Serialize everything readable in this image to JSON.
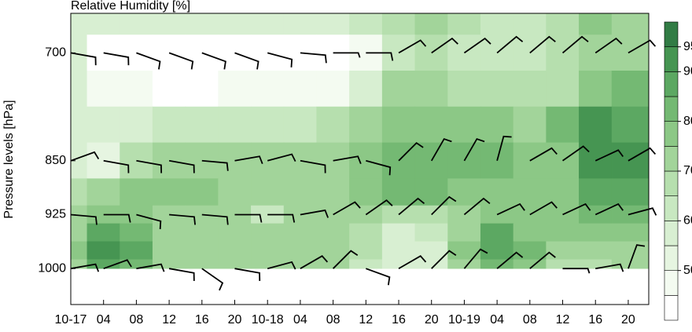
{
  "chart_data": {
    "type": "contour",
    "title": "Relative Humidity [%]",
    "ylabel": "Pressure levels [hPa]",
    "x": [
      0,
      4,
      8,
      12,
      16,
      20,
      24,
      28,
      32,
      36,
      40,
      44,
      48,
      52,
      56,
      60,
      64,
      68
    ],
    "xlim": [
      0,
      70.5
    ],
    "xticks": [
      {
        "value": 0,
        "label": "10-17"
      },
      {
        "value": 4,
        "label": "04"
      },
      {
        "value": 8,
        "label": "08"
      },
      {
        "value": 12,
        "label": "12"
      },
      {
        "value": 16,
        "label": "16"
      },
      {
        "value": 20,
        "label": "20"
      },
      {
        "value": 24,
        "label": "10-18"
      },
      {
        "value": 28,
        "label": "04"
      },
      {
        "value": 32,
        "label": "08"
      },
      {
        "value": 36,
        "label": "12"
      },
      {
        "value": 40,
        "label": "16"
      },
      {
        "value": 44,
        "label": "20"
      },
      {
        "value": 48,
        "label": "10-19"
      },
      {
        "value": 52,
        "label": "04"
      },
      {
        "value": 56,
        "label": "08"
      },
      {
        "value": 60,
        "label": "12"
      },
      {
        "value": 64,
        "label": "16"
      },
      {
        "value": 68,
        "label": "20"
      }
    ],
    "ylim": [
      1050,
      645
    ],
    "yticks": [
      700,
      850,
      925,
      1000
    ],
    "levels": [
      650,
      700,
      750,
      800,
      850,
      900,
      925,
      950,
      975,
      1000
    ],
    "values": [
      [
        58,
        58,
        57,
        57,
        56,
        56,
        55,
        55,
        55,
        60,
        68,
        70,
        65,
        62,
        62,
        65,
        75,
        72
      ],
      [
        55,
        40,
        38,
        35,
        35,
        35,
        35,
        35,
        38,
        45,
        62,
        65,
        62,
        60,
        62,
        65,
        72,
        70
      ],
      [
        55,
        45,
        45,
        42,
        42,
        45,
        45,
        45,
        48,
        58,
        70,
        70,
        68,
        65,
        65,
        68,
        78,
        82
      ],
      [
        55,
        55,
        58,
        60,
        62,
        62,
        62,
        62,
        65,
        70,
        78,
        78,
        78,
        75,
        70,
        82,
        90,
        88
      ],
      [
        55,
        50,
        68,
        70,
        70,
        70,
        72,
        72,
        72,
        75,
        82,
        82,
        82,
        80,
        78,
        78,
        92,
        90
      ],
      [
        65,
        72,
        75,
        75,
        75,
        72,
        72,
        72,
        72,
        75,
        80,
        80,
        78,
        78,
        78,
        75,
        85,
        88
      ],
      [
        72,
        78,
        78,
        73,
        72,
        72,
        62,
        70,
        70,
        70,
        65,
        65,
        72,
        75,
        75,
        78,
        80,
        80
      ],
      [
        70,
        85,
        80,
        72,
        72,
        70,
        70,
        70,
        70,
        65,
        58,
        60,
        72,
        85,
        78,
        75,
        78,
        78
      ],
      [
        75,
        90,
        85,
        72,
        70,
        70,
        72,
        72,
        72,
        65,
        55,
        58,
        75,
        88,
        80,
        70,
        70,
        72
      ],
      [
        72,
        85,
        80,
        70,
        70,
        72,
        72,
        72,
        70,
        62,
        55,
        58,
        72,
        80,
        75,
        68,
        66,
        70
      ]
    ],
    "colorbar": {
      "boundaries": [
        40,
        45,
        50,
        55,
        60,
        65,
        70,
        75,
        80,
        85,
        90,
        95,
        100
      ],
      "colors": [
        "#ffffff",
        "#f4fbf1",
        "#e6f5e1",
        "#d8efd2",
        "#c8e8c1",
        "#b6dfae",
        "#a2d49a",
        "#8cc886",
        "#74b973",
        "#5ca862",
        "#469552",
        "#327c45"
      ],
      "ticks": [
        50,
        60,
        70,
        80,
        90,
        95
      ]
    },
    "wind": {
      "levels": [
        700,
        850,
        925,
        1000
      ],
      "direction": [
        [
          100,
          100,
          110,
          110,
          110,
          110,
          105,
          95,
          90,
          90,
          60,
          55,
          55,
          50,
          50,
          50,
          55,
          60
        ],
        [
          70,
          100,
          100,
          100,
          95,
          80,
          75,
          100,
          80,
          105,
          45,
          30,
          30,
          15,
          60,
          55,
          65,
          60
        ],
        [
          95,
          90,
          105,
          95,
          95,
          90,
          90,
          80,
          60,
          55,
          50,
          45,
          50,
          65,
          60,
          65,
          65,
          75
        ],
        [
          80,
          70,
          80,
          100,
          125,
          100,
          75,
          60,
          45,
          110,
          60,
          45,
          40,
          50,
          50,
          90,
          80,
          20
        ]
      ],
      "speed": [
        [
          10,
          10,
          10,
          10,
          10,
          10,
          10,
          10,
          5,
          10,
          10,
          10,
          10,
          10,
          10,
          10,
          10,
          10
        ],
        [
          10,
          10,
          10,
          10,
          10,
          10,
          10,
          10,
          10,
          10,
          10,
          10,
          10,
          10,
          10,
          10,
          10,
          10
        ],
        [
          10,
          10,
          10,
          10,
          10,
          10,
          10,
          10,
          10,
          10,
          10,
          10,
          10,
          10,
          10,
          10,
          10,
          10
        ],
        [
          10,
          10,
          10,
          10,
          10,
          10,
          10,
          10,
          10,
          10,
          10,
          10,
          10,
          10,
          10,
          5,
          10,
          10
        ]
      ]
    }
  }
}
